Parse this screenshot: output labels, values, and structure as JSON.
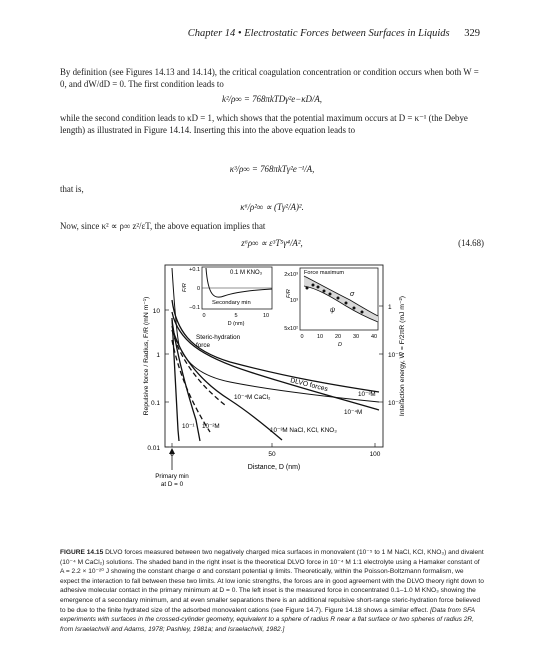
{
  "header": {
    "running_title": "Chapter 14 • Electrostatic Forces between Surfaces in Liquids",
    "page_number": "329"
  },
  "body": {
    "p1": "By definition (see Figures 14.13 and 14.14), the critical coagulation concentration or condition occurs when both W = 0, and dW/dD = 0. The first condition leads to",
    "eq1": "k²/ρ∞ = 768πkTDγ²e−κD/A,",
    "p2": "while the second condition leads to κD = 1, which shows that the potential maximum occurs at D = κ⁻¹ (the Debye length) as illustrated in Figure 14.14. Inserting this into the above equation leads to",
    "eq2": "κ³/ρ∞ = 768πkTγ²e⁻¹/A,",
    "p3": "that is,",
    "eq3": "κ⁶/ρ²∞ ∝ (Tγ²/A)².",
    "p4": "Now, since κ² ∝ ρ∞ z²/εT, the above equation implies that",
    "eq4": "z⁶ρ∞ ∝ ε³T⁵γ⁴/A²,",
    "eq4_number": "(14.68)"
  },
  "figure": {
    "y_axis_left": "Repulsive force / Radius, F/R (mN m⁻¹)",
    "y_axis_right": "Interaction energy, W = F/2πR (mJ m⁻²)",
    "x_axis": "Distance, D (nm)",
    "x_ticks": [
      "0",
      "50",
      "100"
    ],
    "y_ticks_left": [
      "0.01",
      "0.1",
      "1",
      "10"
    ],
    "y_ticks_right": [
      "10⁻²",
      "10⁻¹",
      "1"
    ],
    "labels": {
      "primary_min": "Primary min",
      "at_d0": "at D = 0",
      "steric": "Steric-hydration",
      "steric2": "force",
      "dlvo": "DLVO forces",
      "cacl2": "10⁻⁴M CaCl₂",
      "m3": "10⁻³M",
      "m4": "10⁻⁴M",
      "m1": "10⁻¹",
      "m2": "10⁻²M",
      "nacl": "10⁻³M NaCl, KCl, KNO₃"
    },
    "inset_left": {
      "title": "0.1 M KNO₃",
      "ylabel": "F/R",
      "yticks": [
        "+0.1",
        "0",
        "−0.1"
      ],
      "xticks": [
        "0",
        "5",
        "10"
      ],
      "xlabel": "D (nm)",
      "secondary": "Secondary min"
    },
    "inset_right": {
      "title": "Force maximum",
      "ylabel": "F/R",
      "yticks": [
        "2x10³",
        "10³",
        "5x10²"
      ],
      "xticks": [
        "0",
        "10",
        "20",
        "30",
        "40"
      ],
      "xlabel": "D",
      "sigma": "σ",
      "psi": "ψ"
    }
  },
  "caption": {
    "label": "FIGURE 14.15",
    "text": "DLVO forces measured between two negatively charged mica surfaces in monovalent (10⁻⁵ to 1 M NaCl, KCl, KNO₃) and divalent (10⁻⁴ M CaCl₂) solutions. The shaded band in the right inset is the theoretical DLVO force in 10⁻⁴ M 1:1 electrolyte using a Hamaker constant of A = 2.2 × 10⁻²⁰ J showing the constant charge σ and constant potential ψ limits. Theoretically, within the Poisson-Boltzmann formalism, we expect the interaction to fall between these two limits. At low ionic strengths, the forces are in good agreement with the DLVO theory right down to adhesive molecular contact in the primary minimum at D = 0. The left inset is the measured force in concentrated 0.1–1.0 M KNO₃ showing the emergence of a secondary minimum, and at even smaller separations there is an additional repulsive short-range steric-hydration force believed to be due to the finite hydrated size of the adsorbed monovalent cations (see Figure 14.7). Figure 14.18 shows a similar effect.",
    "citation": "[Data from SFA experiments with surfaces in the crossed-cylinder geometry, equivalent to a sphere of radius R near a flat surface or two spheres of radius 2R, from Israelachvili and Adams, 1978; Pashley, 1981a; and Israelachvili, 1982.]"
  }
}
